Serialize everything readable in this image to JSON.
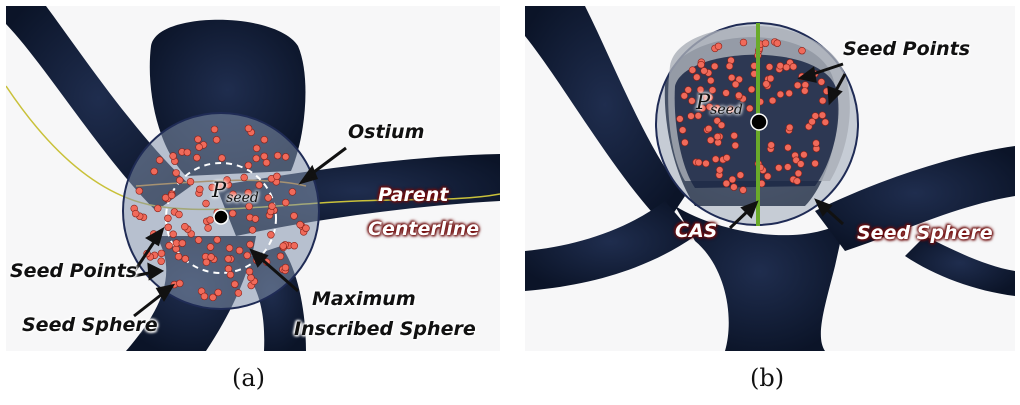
{
  "panel_a": {
    "caption": "(a)",
    "labels": {
      "ostium": "Ostium",
      "p_seed_main": "P",
      "p_seed_sub": "seed",
      "parent": "Parent",
      "centerline": "Centerline",
      "seed_points": "Seed Points",
      "seed_sphere": "Seed Sphere",
      "maximum": "Maximum",
      "inscribed_sphere": "Inscribed Sphere"
    }
  },
  "panel_b": {
    "caption": "(b)",
    "labels": {
      "seed_points": "Seed Points",
      "p_seed_main": "P",
      "p_seed_sub": "seed",
      "cas": "CAS",
      "seed_sphere": "Seed Sphere"
    }
  },
  "colors": {
    "vessel": "#0f1a33",
    "vessel_edge": "#22335a",
    "sphere_fill": "#7f8fa6",
    "sphere_edge": "#1f2b55",
    "seed_point": "#f06a5a",
    "centerline": "#c9c13a",
    "cas_line": "#6aaa2a"
  }
}
